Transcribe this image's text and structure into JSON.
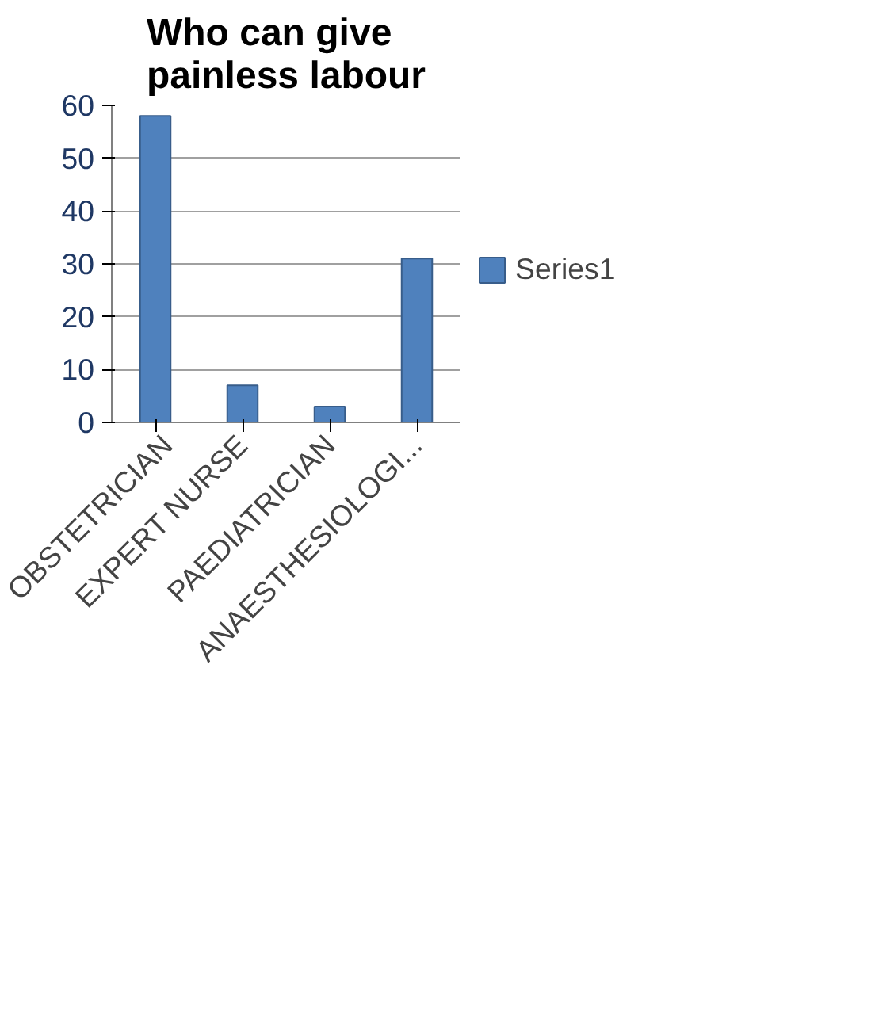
{
  "chart_data": {
    "type": "bar",
    "title": "Who can give painless labour",
    "categories": [
      "OBSTETRICIAN",
      "EXPERT NURSE",
      "PAEDIATRICIAN",
      "ANAESTHESIOLOGI..."
    ],
    "series": [
      {
        "name": "Series1",
        "color": "#4f81bd",
        "values": [
          58,
          7,
          3,
          31
        ]
      }
    ],
    "ylim": [
      0,
      60
    ],
    "yticks": [
      0,
      10,
      20,
      30,
      40,
      50,
      60
    ],
    "grid": "y",
    "legend": "right"
  }
}
